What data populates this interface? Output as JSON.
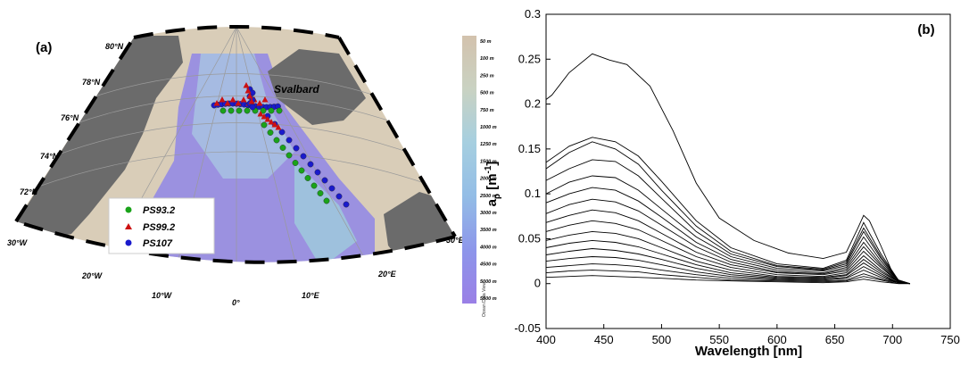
{
  "map": {
    "panel_label": "(a)",
    "place_label": "Svalbard",
    "lat_labels": [
      "80°N",
      "78°N",
      "76°N",
      "74°N",
      "72°N"
    ],
    "lon_labels": [
      "30°W",
      "20°W",
      "10°W",
      "0°",
      "10°E",
      "20°E",
      "30°E"
    ],
    "depth_scale": [
      "50 m",
      "100 m",
      "250 m",
      "500 m",
      "750 m",
      "1000 m",
      "1250 m",
      "1500 m",
      "2000 m",
      "2500 m",
      "3000 m",
      "3500 m",
      "4000 m",
      "4500 m",
      "5000 m",
      "5500 m"
    ],
    "watermark": "Ocean Data View",
    "legend": [
      {
        "name": "PS93.2",
        "marker": "circle",
        "color": "#1aa31a"
      },
      {
        "name": "PS99.2",
        "marker": "triangle",
        "color": "#cc1111"
      },
      {
        "name": "PS107",
        "marker": "circle",
        "color": "#1a1acc"
      }
    ],
    "colors": {
      "land": "#6b6b6b",
      "shelf": "#d9cdb8",
      "deep": "#8f86e6",
      "mid": "#a9c6e2"
    }
  },
  "chart_data": {
    "type": "line",
    "panel_label": "(b)",
    "xlabel": "Wavelength [nm]",
    "ylabel_main": "a",
    "ylabel_sub": "p",
    "ylabel_unit": " [m",
    "ylabel_exp": "-1",
    "ylabel_close": "]",
    "xlim": [
      400,
      750
    ],
    "ylim": [
      -0.05,
      0.3
    ],
    "xticks": [
      400,
      450,
      500,
      550,
      600,
      650,
      700,
      750
    ],
    "xtick_labels": [
      "400",
      "450",
      "500",
      "550",
      "600",
      "650",
      "700",
      "750"
    ],
    "yticks": [
      -0.05,
      0,
      0.05,
      0.1,
      0.15,
      0.2,
      0.25,
      0.3
    ],
    "ytick_labels": [
      "-0.05",
      "0",
      "0.05",
      "0.1",
      "0.15",
      "0.2",
      "0.25",
      "0.3"
    ],
    "grid": false,
    "line_color": "#000000",
    "wavelength_range": [
      400,
      715
    ],
    "series": [
      {
        "x": [
          400,
          405,
          420,
          440,
          455,
          470,
          490,
          510,
          530,
          550,
          580,
          610,
          640,
          660,
          670,
          675,
          680,
          690,
          700,
          705,
          710,
          715
        ],
        "y": [
          0.205,
          0.21,
          0.235,
          0.256,
          0.249,
          0.244,
          0.22,
          0.17,
          0.112,
          0.073,
          0.048,
          0.034,
          0.028,
          0.035,
          0.062,
          0.076,
          0.07,
          0.042,
          0.012,
          0.004,
          0.001,
          0.0
        ]
      },
      {
        "x": [
          400,
          420,
          440,
          460,
          480,
          500,
          530,
          560,
          600,
          640,
          660,
          675,
          690,
          705,
          715
        ],
        "y": [
          0.135,
          0.153,
          0.163,
          0.158,
          0.142,
          0.114,
          0.07,
          0.04,
          0.022,
          0.017,
          0.026,
          0.068,
          0.033,
          0.004,
          0.0
        ]
      },
      {
        "x": [
          400,
          420,
          440,
          460,
          480,
          500,
          530,
          560,
          600,
          640,
          660,
          675,
          690,
          705,
          715
        ],
        "y": [
          0.128,
          0.146,
          0.158,
          0.15,
          0.133,
          0.104,
          0.064,
          0.036,
          0.02,
          0.016,
          0.024,
          0.062,
          0.03,
          0.004,
          0.0
        ]
      },
      {
        "x": [
          400,
          420,
          440,
          460,
          480,
          500,
          530,
          560,
          600,
          640,
          660,
          675,
          690,
          705,
          715
        ],
        "y": [
          0.115,
          0.128,
          0.138,
          0.136,
          0.12,
          0.095,
          0.058,
          0.033,
          0.019,
          0.015,
          0.022,
          0.058,
          0.028,
          0.003,
          0.0
        ]
      },
      {
        "x": [
          400,
          420,
          440,
          460,
          480,
          500,
          530,
          560,
          600,
          640,
          660,
          675,
          690,
          705,
          715
        ],
        "y": [
          0.1,
          0.113,
          0.12,
          0.118,
          0.104,
          0.083,
          0.052,
          0.03,
          0.017,
          0.014,
          0.02,
          0.052,
          0.025,
          0.003,
          0.0
        ]
      },
      {
        "x": [
          400,
          420,
          440,
          460,
          480,
          500,
          530,
          560,
          600,
          640,
          660,
          675,
          690,
          705,
          715
        ],
        "y": [
          0.09,
          0.1,
          0.107,
          0.104,
          0.092,
          0.074,
          0.046,
          0.027,
          0.015,
          0.012,
          0.018,
          0.046,
          0.022,
          0.003,
          0.0
        ]
      },
      {
        "x": [
          400,
          420,
          440,
          460,
          480,
          500,
          530,
          560,
          600,
          640,
          660,
          675,
          690,
          705,
          715
        ],
        "y": [
          0.078,
          0.088,
          0.094,
          0.091,
          0.081,
          0.065,
          0.041,
          0.024,
          0.013,
          0.011,
          0.016,
          0.041,
          0.02,
          0.002,
          0.0
        ]
      },
      {
        "x": [
          400,
          420,
          440,
          460,
          480,
          500,
          530,
          560,
          600,
          640,
          660,
          675,
          690,
          705,
          715
        ],
        "y": [
          0.068,
          0.076,
          0.082,
          0.079,
          0.07,
          0.056,
          0.035,
          0.021,
          0.012,
          0.01,
          0.014,
          0.036,
          0.018,
          0.002,
          0.0
        ]
      },
      {
        "x": [
          400,
          420,
          440,
          460,
          480,
          500,
          530,
          560,
          600,
          640,
          660,
          675,
          690,
          705,
          715
        ],
        "y": [
          0.058,
          0.065,
          0.07,
          0.067,
          0.06,
          0.048,
          0.03,
          0.018,
          0.01,
          0.008,
          0.012,
          0.031,
          0.015,
          0.002,
          0.0
        ]
      },
      {
        "x": [
          400,
          420,
          440,
          460,
          480,
          500,
          530,
          560,
          600,
          640,
          660,
          675,
          690,
          705,
          715
        ],
        "y": [
          0.048,
          0.054,
          0.058,
          0.056,
          0.05,
          0.04,
          0.025,
          0.015,
          0.008,
          0.007,
          0.01,
          0.027,
          0.013,
          0.002,
          0.0
        ]
      },
      {
        "x": [
          400,
          420,
          440,
          460,
          480,
          500,
          530,
          560,
          600,
          640,
          660,
          675,
          690,
          705,
          715
        ],
        "y": [
          0.04,
          0.045,
          0.048,
          0.046,
          0.041,
          0.033,
          0.021,
          0.012,
          0.007,
          0.006,
          0.009,
          0.023,
          0.011,
          0.001,
          0.0
        ]
      },
      {
        "x": [
          400,
          420,
          440,
          460,
          480,
          500,
          530,
          560,
          600,
          640,
          660,
          675,
          690,
          705,
          715
        ],
        "y": [
          0.032,
          0.036,
          0.039,
          0.037,
          0.033,
          0.027,
          0.017,
          0.01,
          0.006,
          0.005,
          0.007,
          0.019,
          0.009,
          0.001,
          0.0
        ]
      },
      {
        "x": [
          400,
          420,
          440,
          460,
          480,
          500,
          530,
          560,
          600,
          640,
          660,
          675,
          690,
          705,
          715
        ],
        "y": [
          0.025,
          0.028,
          0.03,
          0.029,
          0.026,
          0.021,
          0.013,
          0.008,
          0.005,
          0.004,
          0.006,
          0.015,
          0.007,
          0.001,
          0.0
        ]
      },
      {
        "x": [
          400,
          420,
          440,
          460,
          480,
          500,
          530,
          560,
          600,
          640,
          660,
          675,
          690,
          705,
          715
        ],
        "y": [
          0.018,
          0.02,
          0.022,
          0.021,
          0.019,
          0.015,
          0.01,
          0.006,
          0.004,
          0.003,
          0.004,
          0.011,
          0.005,
          0.001,
          0.0
        ]
      },
      {
        "x": [
          400,
          420,
          440,
          460,
          480,
          500,
          530,
          560,
          600,
          640,
          660,
          675,
          690,
          705,
          715
        ],
        "y": [
          0.012,
          0.014,
          0.015,
          0.014,
          0.013,
          0.01,
          0.007,
          0.004,
          0.003,
          0.002,
          0.003,
          0.008,
          0.004,
          0.0,
          0.0
        ]
      },
      {
        "x": [
          400,
          420,
          440,
          460,
          480,
          500,
          530,
          560,
          600,
          640,
          660,
          675,
          690,
          705,
          715
        ],
        "y": [
          0.007,
          0.008,
          0.009,
          0.008,
          0.007,
          0.006,
          0.004,
          0.003,
          0.002,
          0.001,
          0.002,
          0.005,
          0.002,
          0.0,
          0.0
        ]
      }
    ]
  }
}
